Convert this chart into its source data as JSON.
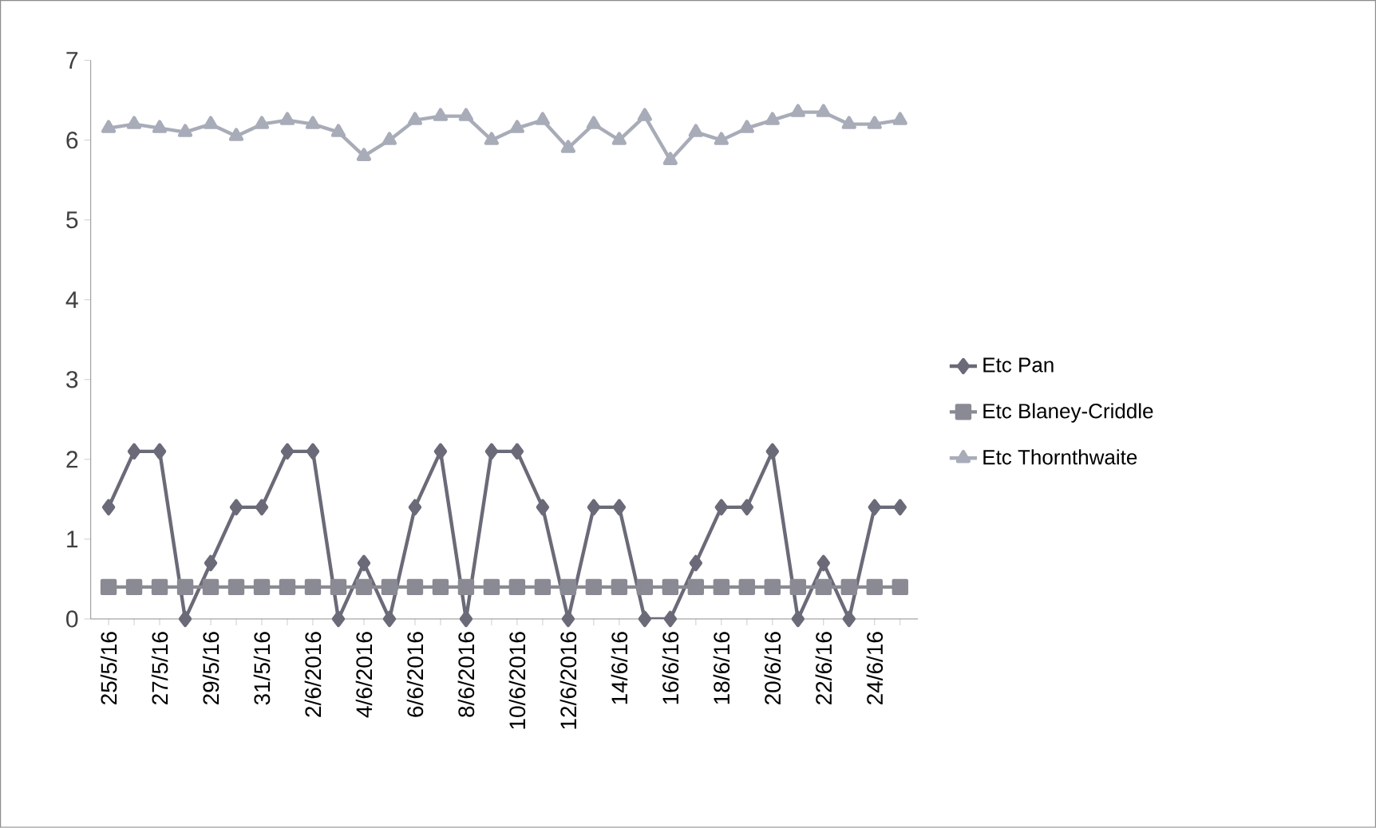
{
  "chart_data": {
    "type": "line",
    "categories": [
      "25/5/16",
      null,
      "27/5/16",
      null,
      "29/5/16",
      null,
      "31/5/16",
      null,
      "2/6/2016",
      null,
      "4/6/2016",
      null,
      "6/6/2016",
      null,
      "8/6/2016",
      null,
      "10/6/2016",
      null,
      "12/6/2016",
      null,
      "14/6/16",
      null,
      "16/6/16",
      null,
      "18/6/16",
      null,
      "20/6/16",
      null,
      "22/6/16",
      null,
      "24/6/16",
      null
    ],
    "series": [
      {
        "name": "Etc Pan",
        "color": "#6a6a78",
        "marker": "diamond",
        "values": [
          1.4,
          2.1,
          2.1,
          0,
          0.7,
          1.4,
          1.4,
          2.1,
          2.1,
          0,
          0.7,
          0,
          1.4,
          2.1,
          0,
          2.1,
          2.1,
          1.4,
          0,
          1.4,
          1.4,
          0,
          0,
          0.7,
          1.4,
          1.4,
          2.1,
          0,
          0.7,
          0,
          1.4,
          1.4
        ]
      },
      {
        "name": "Etc Blaney-Criddle",
        "color": "#8a8a94",
        "marker": "square",
        "values": [
          0.4,
          0.4,
          0.4,
          0.4,
          0.4,
          0.4,
          0.4,
          0.4,
          0.4,
          0.4,
          0.4,
          0.4,
          0.4,
          0.4,
          0.4,
          0.4,
          0.4,
          0.4,
          0.4,
          0.4,
          0.4,
          0.4,
          0.4,
          0.4,
          0.4,
          0.4,
          0.4,
          0.4,
          0.4,
          0.4,
          0.4,
          0.4
        ]
      },
      {
        "name": "Etc Thornthwaite",
        "color": "#a8acb8",
        "marker": "triangle",
        "values": [
          6.15,
          6.2,
          6.15,
          6.1,
          6.2,
          6.05,
          6.2,
          6.25,
          6.2,
          6.1,
          5.8,
          6.0,
          6.25,
          6.3,
          6.3,
          6.0,
          6.15,
          6.25,
          5.9,
          6.2,
          6.0,
          6.3,
          5.75,
          6.1,
          6.0,
          6.15,
          6.25,
          6.35,
          6.35,
          6.2,
          6.2,
          6.25
        ]
      }
    ],
    "ylim": [
      0,
      7
    ],
    "yticks": [
      0,
      1,
      2,
      3,
      4,
      5,
      6,
      7
    ],
    "grid": false,
    "legend": "right"
  }
}
